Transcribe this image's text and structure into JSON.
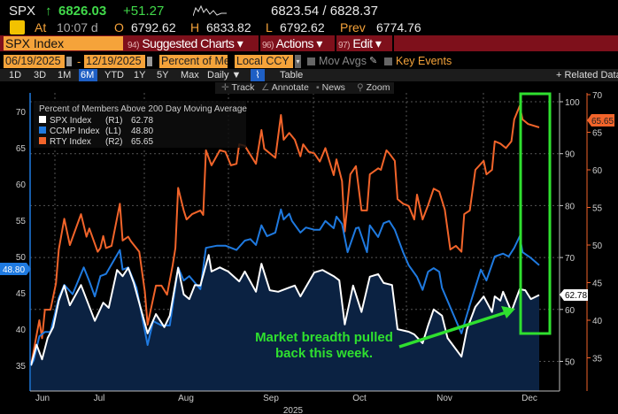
{
  "quote": {
    "ticker": "SPX",
    "direction_icon": "up-arrow-icon",
    "last": "6826.03",
    "change": "+51.27",
    "bid_ask": "6823.54 / 6828.37",
    "at_label": "At",
    "time": "10:07 d",
    "open_label": "O",
    "open": "6792.62",
    "high_label": "H",
    "high": "6833.82",
    "low_label": "L",
    "low": "6792.62",
    "prev_label": "Prev",
    "prev": "6774.76"
  },
  "command_bar": {
    "security": "SPX Index",
    "menus": [
      {
        "num": "94)",
        "label": "Suggested Charts ▾"
      },
      {
        "num": "96)",
        "label": "Actions ▾"
      },
      {
        "num": "97)",
        "label": "Edit ▾"
      }
    ]
  },
  "settings": {
    "start_date": "06/19/2025",
    "date_sep": "-",
    "end_date": "12/19/2025",
    "field": "Percent of Me",
    "currency": "Local CCY",
    "mov_avgs": "Mov Avgs",
    "key_events": "Key Events"
  },
  "periods": [
    "1D",
    "3D",
    "1M",
    "6M",
    "YTD",
    "1Y",
    "5Y",
    "Max"
  ],
  "selected_period": "6M",
  "frequency": "Daily ▼",
  "table_label": "Table",
  "related_data": "+ Related Data",
  "tools": [
    "Track",
    "Annotate",
    "News",
    "Zoom"
  ],
  "colors": {
    "spx": "#ffffff",
    "ccmp": "#1f7ae0",
    "rty": "#f2642a",
    "fill": "#0b2242",
    "highlight": "#2fe02f",
    "accent": "#f5a33a",
    "menubar": "#7e101b"
  },
  "chart_data": {
    "type": "line",
    "title": "Percent of Members Above 200 Day Moving Average",
    "xlabel": "2025",
    "x_ticks": [
      "Jun",
      "Jul",
      "Aug",
      "Sep",
      "Oct",
      "Nov",
      "Dec"
    ],
    "xlim": [
      "2025-06-19",
      "2025-12-19"
    ],
    "grid": true,
    "legend_placement": "top-left",
    "axes": {
      "L1": {
        "ticks": [
          35,
          40,
          45,
          50,
          55,
          60,
          65,
          70
        ],
        "color": "#1f7ae0"
      },
      "R1": {
        "ticks": [
          50,
          60,
          70,
          80,
          90,
          100
        ],
        "color": "#cccccc"
      },
      "R2": {
        "ticks": [
          35,
          40,
          45,
          50,
          55,
          60,
          65,
          70
        ],
        "color": "#f2642a"
      }
    },
    "series": [
      {
        "name": "SPX Index",
        "axis": "R1",
        "axis_label": "(R1)",
        "last": "62.78",
        "color": "#ffffff",
        "filled": true,
        "points": [
          [
            "2025-06-19",
            49.2
          ],
          [
            "2025-06-21",
            53.2
          ],
          [
            "2025-06-23",
            50.4
          ],
          [
            "2025-06-25",
            54.5
          ],
          [
            "2025-06-27",
            56.6
          ],
          [
            "2025-06-29",
            61.7
          ],
          [
            "2025-07-01",
            64.6
          ],
          [
            "2025-07-03",
            60.8
          ],
          [
            "2025-07-07",
            64.7
          ],
          [
            "2025-07-12",
            57.8
          ],
          [
            "2025-07-15",
            61.3
          ],
          [
            "2025-07-17",
            60.3
          ],
          [
            "2025-07-20",
            67.6
          ],
          [
            "2025-07-22",
            66.4
          ],
          [
            "2025-07-24",
            68.0
          ],
          [
            "2025-07-26",
            65.1
          ],
          [
            "2025-07-31",
            55.4
          ],
          [
            "2025-08-03",
            59.1
          ],
          [
            "2025-08-06",
            56.6
          ],
          [
            "2025-08-08",
            58.8
          ],
          [
            "2025-08-11",
            68.0
          ],
          [
            "2025-08-13",
            62.9
          ],
          [
            "2025-08-15",
            62.0
          ],
          [
            "2025-08-17",
            64.7
          ],
          [
            "2025-08-19",
            64.6
          ],
          [
            "2025-08-22",
            70.5
          ],
          [
            "2025-08-23",
            67.3
          ],
          [
            "2025-08-26",
            68.1
          ],
          [
            "2025-08-29",
            67.3
          ],
          [
            "2025-09-02",
            65.4
          ],
          [
            "2025-09-04",
            67.3
          ],
          [
            "2025-09-08",
            63.4
          ],
          [
            "2025-09-10",
            68.8
          ],
          [
            "2025-09-13",
            63.7
          ],
          [
            "2025-09-16",
            63.4
          ],
          [
            "2025-09-20",
            64.2
          ],
          [
            "2025-09-22",
            64.6
          ],
          [
            "2025-09-24",
            62.5
          ],
          [
            "2025-09-29",
            67.1
          ],
          [
            "2025-10-02",
            67.6
          ],
          [
            "2025-10-06",
            66.4
          ],
          [
            "2025-10-08",
            65.6
          ],
          [
            "2025-10-10",
            57.1
          ],
          [
            "2025-10-13",
            64.6
          ],
          [
            "2025-10-16",
            59.5
          ],
          [
            "2025-10-19",
            66.3
          ],
          [
            "2025-10-22",
            66.8
          ],
          [
            "2025-10-24",
            65.1
          ],
          [
            "2025-10-27",
            64.7
          ],
          [
            "2025-10-29",
            56.2
          ],
          [
            "2025-11-02",
            55.7
          ],
          [
            "2025-11-04",
            55.2
          ],
          [
            "2025-11-07",
            53.5
          ],
          [
            "2025-11-09",
            56.9
          ],
          [
            "2025-11-11",
            60.0
          ],
          [
            "2025-11-14",
            58.8
          ],
          [
            "2025-11-16",
            54.5
          ],
          [
            "2025-11-21",
            50.9
          ],
          [
            "2025-11-23",
            56.2
          ],
          [
            "2025-11-26",
            60.5
          ],
          [
            "2025-11-29",
            62.5
          ],
          [
            "2025-12-02",
            59.5
          ],
          [
            "2025-12-03",
            62.5
          ],
          [
            "2025-12-05",
            61.7
          ],
          [
            "2025-12-06",
            63.4
          ],
          [
            "2025-12-09",
            59.6
          ],
          [
            "2025-12-12",
            63.9
          ],
          [
            "2025-12-14",
            63.7
          ],
          [
            "2025-12-16",
            62.0
          ],
          [
            "2025-12-19",
            62.78
          ]
        ]
      },
      {
        "name": "CCMP Index",
        "axis": "L1",
        "axis_label": "(L1)",
        "last": "48.80",
        "color": "#1f7ae0",
        "points": [
          [
            "2025-06-19",
            35.0
          ],
          [
            "2025-06-20",
            35.7
          ],
          [
            "2025-06-22",
            39.0
          ],
          [
            "2025-06-24",
            39.6
          ],
          [
            "2025-06-26",
            39.6
          ],
          [
            "2025-06-29",
            44.3
          ],
          [
            "2025-07-01",
            46.1
          ],
          [
            "2025-07-04",
            44.8
          ],
          [
            "2025-07-08",
            48.5
          ],
          [
            "2025-07-10",
            46.6
          ],
          [
            "2025-07-12",
            44.5
          ],
          [
            "2025-07-14",
            47.3
          ],
          [
            "2025-07-16",
            47.6
          ],
          [
            "2025-07-21",
            50.9
          ],
          [
            "2025-07-22",
            48.2
          ],
          [
            "2025-07-24",
            48.5
          ],
          [
            "2025-07-27",
            45.7
          ],
          [
            "2025-07-31",
            37.8
          ],
          [
            "2025-08-02",
            41.1
          ],
          [
            "2025-08-05",
            40.5
          ],
          [
            "2025-08-08",
            40.5
          ],
          [
            "2025-08-11",
            48.5
          ],
          [
            "2025-08-13",
            46.7
          ],
          [
            "2025-08-15",
            47.3
          ],
          [
            "2025-08-19",
            45.5
          ],
          [
            "2025-08-21",
            51.2
          ],
          [
            "2025-08-25",
            51.5
          ],
          [
            "2025-08-28",
            51.5
          ],
          [
            "2025-09-01",
            50.9
          ],
          [
            "2025-09-04",
            52.2
          ],
          [
            "2025-09-06",
            52.4
          ],
          [
            "2025-09-08",
            51.6
          ],
          [
            "2025-09-10",
            54.3
          ],
          [
            "2025-09-12",
            52.8
          ],
          [
            "2025-09-15",
            53.3
          ],
          [
            "2025-09-17",
            56.5
          ],
          [
            "2025-09-18",
            55.1
          ],
          [
            "2025-09-20",
            55.9
          ],
          [
            "2025-09-21",
            54.9
          ],
          [
            "2025-09-24",
            53.3
          ],
          [
            "2025-09-26",
            54.0
          ],
          [
            "2025-09-29",
            53.7
          ],
          [
            "2025-10-01",
            53.7
          ],
          [
            "2025-10-03",
            54.9
          ],
          [
            "2025-10-06",
            53.9
          ],
          [
            "2025-10-07",
            55.5
          ],
          [
            "2025-10-09",
            54.5
          ],
          [
            "2025-10-11",
            50.6
          ],
          [
            "2025-10-14",
            53.9
          ],
          [
            "2025-10-15",
            54.0
          ],
          [
            "2025-10-18",
            50.6
          ],
          [
            "2025-10-19",
            54.3
          ],
          [
            "2025-10-22",
            52.7
          ],
          [
            "2025-10-24",
            54.6
          ],
          [
            "2025-10-26",
            54.9
          ],
          [
            "2025-10-28",
            53.7
          ],
          [
            "2025-10-31",
            50.6
          ],
          [
            "2025-11-02",
            48.8
          ],
          [
            "2025-11-05",
            47.2
          ],
          [
            "2025-11-07",
            45.4
          ],
          [
            "2025-11-09",
            47.9
          ],
          [
            "2025-11-11",
            48.4
          ],
          [
            "2025-11-13",
            47.9
          ],
          [
            "2025-11-14",
            45.7
          ],
          [
            "2025-11-17",
            43.0
          ],
          [
            "2025-11-21",
            39.4
          ],
          [
            "2025-11-24",
            43.3
          ],
          [
            "2025-11-28",
            48.2
          ],
          [
            "2025-11-30",
            46.7
          ],
          [
            "2025-12-03",
            50.0
          ],
          [
            "2025-12-06",
            50.4
          ],
          [
            "2025-12-08",
            50.0
          ],
          [
            "2025-12-10",
            51.2
          ],
          [
            "2025-12-12",
            52.8
          ],
          [
            "2025-12-13",
            50.6
          ],
          [
            "2025-12-16",
            49.8
          ],
          [
            "2025-12-19",
            48.8
          ]
        ]
      },
      {
        "name": "RTY Index",
        "axis": "R2",
        "axis_label": "(R2)",
        "last": "65.65",
        "color": "#f2642a",
        "points": [
          [
            "2025-06-19",
            34.0
          ],
          [
            "2025-06-22",
            40.0
          ],
          [
            "2025-06-23",
            37.6
          ],
          [
            "2025-06-24",
            41.4
          ],
          [
            "2025-06-26",
            41.4
          ],
          [
            "2025-06-28",
            44.9
          ],
          [
            "2025-06-29",
            49.4
          ],
          [
            "2025-07-01",
            53.5
          ],
          [
            "2025-07-03",
            50.0
          ],
          [
            "2025-07-07",
            54.1
          ],
          [
            "2025-07-09",
            51.1
          ],
          [
            "2025-07-10",
            52.2
          ],
          [
            "2025-07-13",
            49.1
          ],
          [
            "2025-07-14",
            49.6
          ],
          [
            "2025-07-15",
            51.2
          ],
          [
            "2025-07-16",
            49.6
          ],
          [
            "2025-07-18",
            49.9
          ],
          [
            "2025-07-21",
            55.5
          ],
          [
            "2025-07-22",
            50.6
          ],
          [
            "2025-07-24",
            51.1
          ],
          [
            "2025-07-25",
            50.5
          ],
          [
            "2025-07-28",
            49.1
          ],
          [
            "2025-07-30",
            43.8
          ],
          [
            "2025-07-31",
            39.4
          ],
          [
            "2025-08-03",
            44.6
          ],
          [
            "2025-08-05",
            44.6
          ],
          [
            "2025-08-07",
            43.4
          ],
          [
            "2025-08-09",
            47.3
          ],
          [
            "2025-08-10",
            49.6
          ],
          [
            "2025-08-11",
            57.6
          ],
          [
            "2025-08-13",
            54.6
          ],
          [
            "2025-08-14",
            53.4
          ],
          [
            "2025-08-16",
            54.1
          ],
          [
            "2025-08-19",
            54.6
          ],
          [
            "2025-08-20",
            54.0
          ],
          [
            "2025-08-21",
            62.6
          ],
          [
            "2025-08-23",
            60.6
          ],
          [
            "2025-08-26",
            62.6
          ],
          [
            "2025-08-28",
            62.4
          ],
          [
            "2025-08-30",
            60.6
          ],
          [
            "2025-09-01",
            60.8
          ],
          [
            "2025-09-02",
            63.4
          ],
          [
            "2025-09-04",
            63.2
          ],
          [
            "2025-09-08",
            60.8
          ],
          [
            "2025-09-10",
            65.3
          ],
          [
            "2025-09-11",
            62.8
          ],
          [
            "2025-09-15",
            61.6
          ],
          [
            "2025-09-17",
            67.3
          ],
          [
            "2025-09-18",
            64.0
          ],
          [
            "2025-09-20",
            64.9
          ],
          [
            "2025-09-22",
            64.0
          ],
          [
            "2025-09-24",
            61.8
          ],
          [
            "2025-09-25",
            63.4
          ],
          [
            "2025-09-27",
            62.4
          ],
          [
            "2025-09-29",
            62.2
          ],
          [
            "2025-10-01",
            61.1
          ],
          [
            "2025-10-03",
            62.9
          ],
          [
            "2025-10-06",
            59.3
          ],
          [
            "2025-10-07",
            61.4
          ],
          [
            "2025-10-09",
            58.5
          ],
          [
            "2025-10-10",
            51.8
          ],
          [
            "2025-10-12",
            59.4
          ],
          [
            "2025-10-14",
            60.5
          ],
          [
            "2025-10-16",
            54.6
          ],
          [
            "2025-10-18",
            54.6
          ],
          [
            "2025-10-19",
            59.4
          ],
          [
            "2025-10-22",
            60.2
          ],
          [
            "2025-10-23",
            60.0
          ],
          [
            "2025-10-25",
            62.6
          ],
          [
            "2025-10-26",
            62.2
          ],
          [
            "2025-10-28",
            61.2
          ],
          [
            "2025-10-29",
            56.1
          ],
          [
            "2025-10-31",
            55.5
          ],
          [
            "2025-11-02",
            55.2
          ],
          [
            "2025-11-04",
            53.4
          ],
          [
            "2025-11-05",
            56.7
          ],
          [
            "2025-11-07",
            53.4
          ],
          [
            "2025-11-09",
            55.3
          ],
          [
            "2025-11-11",
            57.5
          ],
          [
            "2025-11-13",
            57.1
          ],
          [
            "2025-11-15",
            54.7
          ],
          [
            "2025-11-17",
            49.4
          ],
          [
            "2025-11-19",
            49.9
          ],
          [
            "2025-11-21",
            49.1
          ],
          [
            "2025-11-22",
            54.1
          ],
          [
            "2025-11-24",
            54.6
          ],
          [
            "2025-11-26",
            60.0
          ],
          [
            "2025-11-29",
            61.2
          ],
          [
            "2025-11-30",
            59.4
          ],
          [
            "2025-12-02",
            60.0
          ],
          [
            "2025-12-03",
            63.8
          ],
          [
            "2025-12-05",
            63.5
          ],
          [
            "2025-12-07",
            62.9
          ],
          [
            "2025-12-09",
            63.8
          ],
          [
            "2025-12-10",
            66.7
          ],
          [
            "2025-12-12",
            68.5
          ],
          [
            "2025-12-13",
            66.7
          ],
          [
            "2025-12-15",
            66.1
          ],
          [
            "2025-12-19",
            65.65
          ]
        ]
      }
    ],
    "annotation": {
      "line1": "Market breadth pulled",
      "line2": "back this week."
    }
  }
}
